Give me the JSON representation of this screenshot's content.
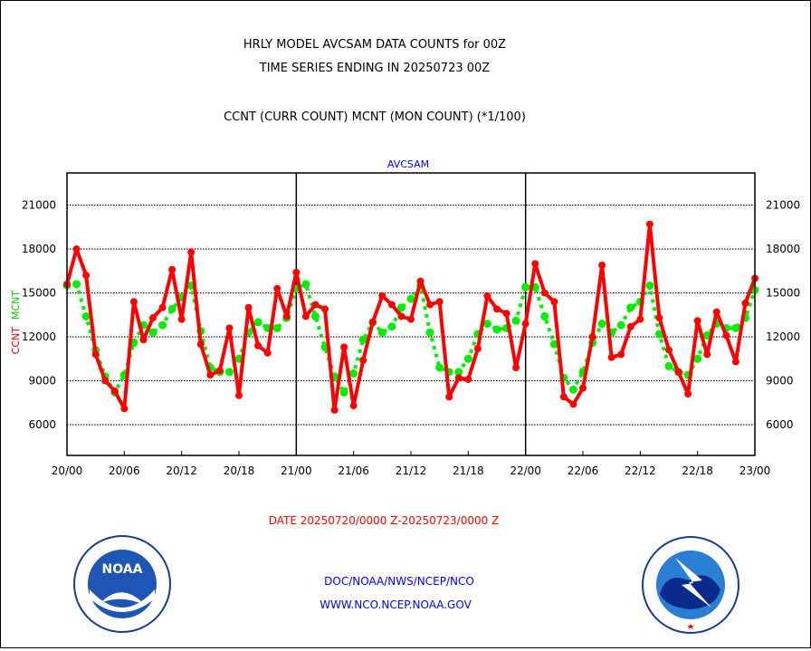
{
  "chart_data": {
    "type": "line",
    "title": "HRLY MODEL AVCSAM DATA COUNTS for 00Z",
    "subtitle": "TIME SERIES ENDING IN 20250723 00Z",
    "description_line": "CCNT (CURR COUNT) MCNT (MON COUNT) (*1/100)",
    "panel_label": "AVCSAM",
    "ylabel_ccnt": "CCNT",
    "ylabel_mcnt": "MCNT",
    "xlabel": "DATE 20250720/0000 Z-20250723/0000 Z",
    "x_hours_range": [
      0,
      72
    ],
    "ylim": [
      3900,
      23200
    ],
    "yticks": [
      6000,
      9000,
      12000,
      15000,
      18000,
      21000
    ],
    "ytick_labels": [
      "6000",
      "9000",
      "12000",
      "15000",
      "18000",
      "21000"
    ],
    "xtick_labels": [
      "20/00",
      "20/06",
      "20/12",
      "20/18",
      "21/00",
      "21/06",
      "21/12",
      "21/18",
      "22/00",
      "22/06",
      "22/12",
      "22/18",
      "23/00"
    ],
    "grid": true,
    "series": [
      {
        "name": "CCNT",
        "color": "#ff0000",
        "style": "solid",
        "values": [
          15600,
          18000,
          16200,
          10800,
          9000,
          8300,
          7100,
          14400,
          11800,
          13300,
          14000,
          16600,
          13200,
          17800,
          11500,
          9400,
          9700,
          12600,
          8000,
          14000,
          11400,
          10900,
          15300,
          13400,
          16400,
          13400,
          14200,
          13900,
          7000,
          11300,
          7300,
          10400,
          13000,
          14800,
          14200,
          13400,
          13200,
          15800,
          14200,
          14400,
          7900,
          9200,
          9100,
          11200,
          14800,
          13900,
          13600,
          9900,
          12900,
          17000,
          15000,
          14400,
          7900,
          7400,
          8500,
          12000,
          16900,
          10600,
          10800,
          12700,
          13200,
          19700,
          13300,
          11100,
          9600,
          8100,
          13100,
          10800,
          13700,
          12100,
          10300,
          14300,
          16000
        ]
      },
      {
        "name": "MCNT",
        "color": "#00ee00",
        "style": "dotted",
        "values": [
          15500,
          15600,
          13400,
          11100,
          9300,
          8200,
          9400,
          11600,
          12800,
          12300,
          12800,
          13900,
          14700,
          15500,
          12400,
          9900,
          9600,
          9600,
          10500,
          12300,
          13000,
          12600,
          12600,
          13300,
          15300,
          15600,
          13400,
          11300,
          9300,
          8200,
          9500,
          11800,
          13000,
          12300,
          12700,
          14000,
          14600,
          15500,
          12300,
          9900,
          9600,
          9600,
          10500,
          12200,
          12900,
          12500,
          12600,
          13100,
          15400,
          15400,
          13400,
          11500,
          9200,
          8400,
          9600,
          11600,
          12900,
          12300,
          12800,
          14000,
          14400,
          15500,
          12200,
          10000,
          9600,
          9400,
          10500,
          12100,
          12900,
          12600,
          12600,
          13300,
          15200
        ]
      }
    ]
  },
  "footer": {
    "line1": "DOC/NOAA/NWS/NCEP/NCO",
    "line2": "WWW.NCO.NCEP.NOAA.GOV",
    "noaa_logo_text": "NOAA",
    "noaa_ring_text": "NATIONAL OCEANIC AND ATMOSPHERIC ADMINISTRATION · U.S. DEPARTMENT OF COMMERCE",
    "nws_ring_text": "NATIONAL WEATHER SERVICE"
  }
}
